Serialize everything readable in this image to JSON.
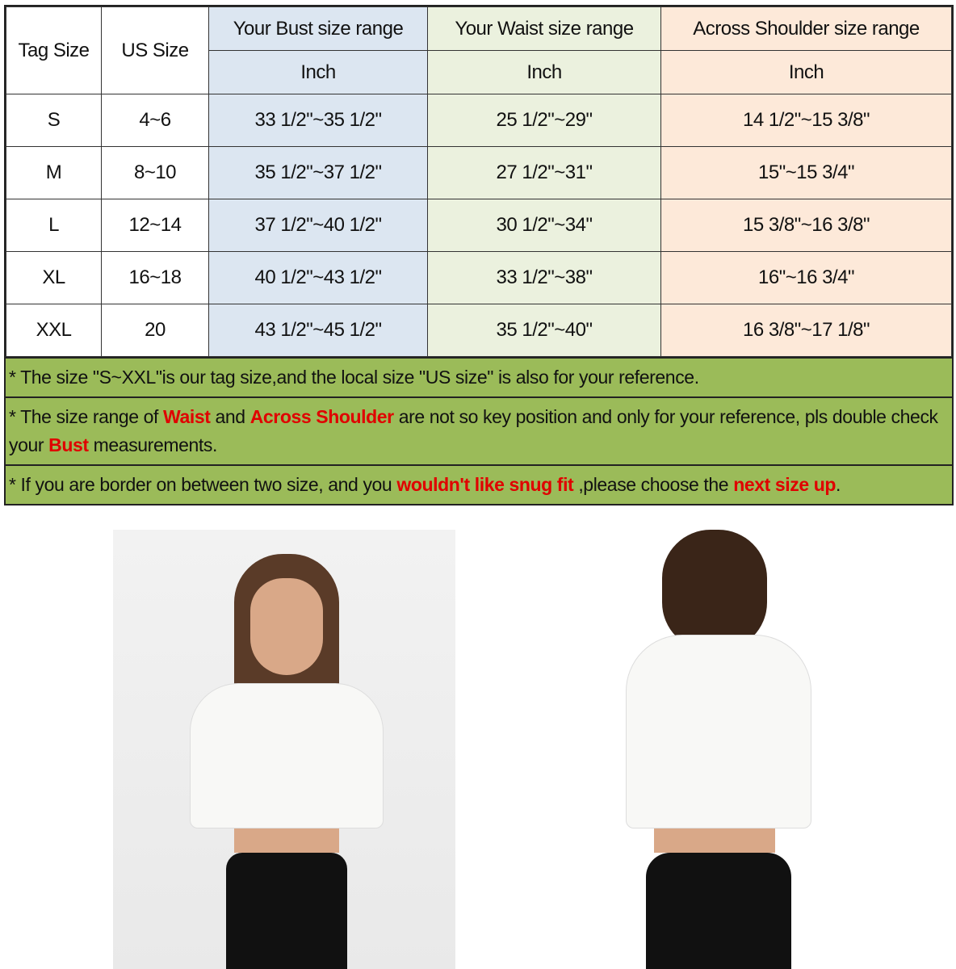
{
  "table": {
    "headers": {
      "tag": "Tag Size",
      "us": "US Size",
      "bust": "Your Bust size range",
      "waist": "Your Waist size range",
      "shoulder": "Across Shoulder size range",
      "unit": "Inch"
    },
    "rows": [
      {
        "tag": "S",
        "us": "4~6",
        "bust": "33 1/2\"~35 1/2\"",
        "waist": "25 1/2\"~29\"",
        "shoulder": "14 1/2\"~15 3/8\""
      },
      {
        "tag": "M",
        "us": "8~10",
        "bust": "35 1/2\"~37 1/2\"",
        "waist": "27 1/2\"~31\"",
        "shoulder": "15\"~15 3/4\""
      },
      {
        "tag": "L",
        "us": "12~14",
        "bust": "37 1/2\"~40 1/2\"",
        "waist": "30 1/2\"~34\"",
        "shoulder": "15 3/8\"~16 3/8\""
      },
      {
        "tag": "XL",
        "us": "16~18",
        "bust": "40 1/2\"~43 1/2\"",
        "waist": "33 1/2\"~38\"",
        "shoulder": "16\"~16 3/4\""
      },
      {
        "tag": "XXL",
        "us": "20",
        "bust": "43 1/2\"~45 1/2\"",
        "waist": "35 1/2\"~40\"",
        "shoulder": "16 3/8\"~17 1/8\""
      }
    ]
  },
  "notes": {
    "n1": "* The size \"S~XXL\"is our tag size,and the local size \"US size\" is also for your reference.",
    "n2a": "* The size range of ",
    "n2b": "Waist",
    "n2c": " and ",
    "n2d": "Across Shoulder",
    "n2e": " are not so key position and only for your reference, pls double check your ",
    "n2f": "Bust",
    "n2g": " measurements.",
    "n3a": "* If you are border on between two size, and you ",
    "n3b": "wouldn't like snug fit",
    "n3c": " ,please choose the ",
    "n3d": "next size up",
    "n3e": "."
  },
  "colors": {
    "bust": "#dce6f1",
    "waist": "#ebf1de",
    "shoulder": "#fde9d9",
    "notes": "#9bbb59",
    "highlight": "#e00000"
  }
}
